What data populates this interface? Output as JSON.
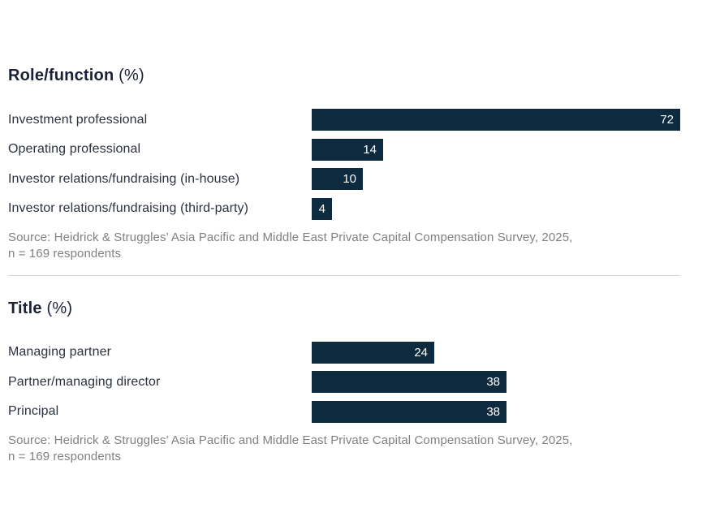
{
  "page": {
    "background": "#ffffff"
  },
  "colors": {
    "bar": "#0e2a3f",
    "heading": "#1a2137",
    "label": "#2b3240",
    "value": "#ffffff",
    "source": "#7e8184",
    "divider": "#d3d5d6"
  },
  "chart_data": [
    {
      "type": "bar",
      "orientation": "horizontal",
      "title": "Role/function",
      "title_unit": "(%)",
      "categories": [
        "Investment professional",
        "Operating professional",
        "Investor relations/fundraising (in-house)",
        "Investor relations/fundraising (third-party)"
      ],
      "values": [
        72,
        14,
        10,
        4
      ],
      "value_unit": "%",
      "value_label_position": "inside-right",
      "xlim": [
        0,
        72
      ],
      "grid": false,
      "legend": false,
      "source": "Source: Heidrick & Struggles’ Asia Pacific and Middle East Private Capital Compensation Survey, 2025,\nn = 169 respondents"
    },
    {
      "type": "bar",
      "orientation": "horizontal",
      "title": "Title",
      "title_unit": "(%)",
      "categories": [
        "Managing partner",
        "Partner/managing director",
        "Principal"
      ],
      "values": [
        24,
        38,
        38
      ],
      "value_unit": "%",
      "value_label_position": "inside-right",
      "xlim": [
        0,
        72
      ],
      "grid": false,
      "legend": false,
      "source": "Source: Heidrick & Struggles’ Asia Pacific and Middle East Private Capital Compensation Survey, 2025,\nn = 169 respondents"
    }
  ]
}
